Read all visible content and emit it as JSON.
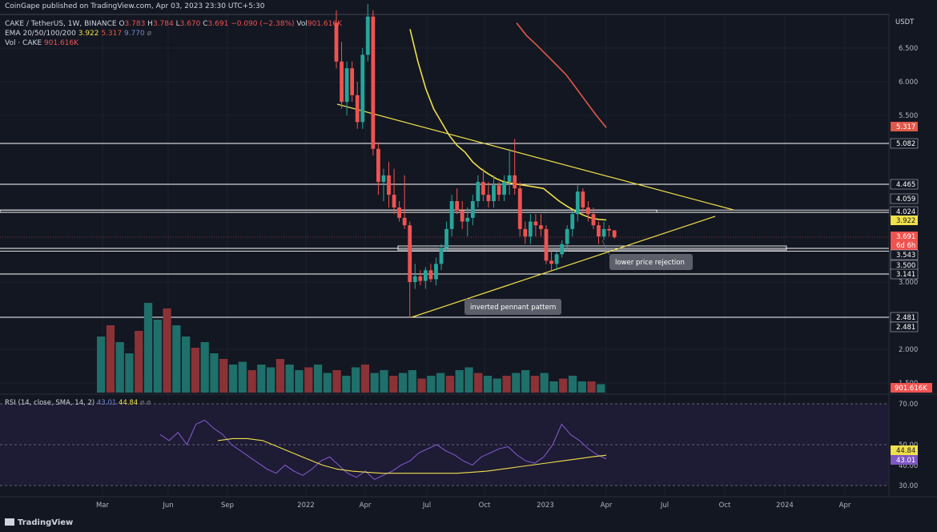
{
  "header": {
    "published": "CoinGape published on TradingView.com, Apr 03, 2023 23:30 UTC+5:30"
  },
  "legend": {
    "symbol": "CAKE / TetherUS, 1W, BINANCE",
    "o_label": "O",
    "o_value": "3.783",
    "h_label": "H",
    "h_value": "3.784",
    "l_label": "L",
    "l_value": "3.670",
    "c_label": "C",
    "c_value": "3.691",
    "change": "−0.090 (−2.38%)",
    "vol_label": "Vol",
    "vol_value": "901.616K",
    "ema_label": "EMA 20/50/100/200",
    "ema20": "3.922",
    "ema50": "5.317",
    "ema100": "9.770",
    "ema200": "ø",
    "vol_line_label": "Vol · CAKE",
    "vol_line_value": "901.616K"
  },
  "rsi_legend": {
    "label": "RSI (14, close, SMA, 14, 2)",
    "rsi": "43.01",
    "sma": "44.84",
    "extra": "ø ø"
  },
  "price_axis": {
    "currency": "USDT",
    "ticks": [
      "6.500",
      "6.000",
      "5.500",
      "3.000",
      "2.000",
      "1.500"
    ],
    "levels": [
      {
        "value": "5.317",
        "color": "#e0584a"
      },
      {
        "value": "5.082",
        "color": "#ffffff"
      },
      {
        "value": "4.465",
        "color": "#ffffff"
      },
      {
        "value": "4.059",
        "color": "#ffffff"
      },
      {
        "value": "4.024",
        "color": "#ffffff"
      },
      {
        "value": "3.922",
        "color": "#f0e04a"
      },
      {
        "value": "3.691",
        "color": "#ef5350"
      },
      {
        "value": "6d 6h",
        "color": "#ef5350"
      },
      {
        "value": "3.543",
        "color": "#ffffff"
      },
      {
        "value": "3.500",
        "color": "#ffffff"
      },
      {
        "value": "3.141",
        "color": "#ffffff"
      },
      {
        "value": "2.481",
        "color": "#ffffff"
      },
      {
        "value": "2.481",
        "color": "#ffffff"
      }
    ],
    "volume_label": "901.616K"
  },
  "rsi_axis": {
    "ticks": [
      "70.00",
      "40.00",
      "30.00"
    ],
    "sma_label": "44.84",
    "rsi_label": "43.01",
    "partial_tick": "50.00"
  },
  "time_axis": [
    "Mar",
    "Jun",
    "Sep",
    "2022",
    "Apr",
    "Jul",
    "Oct",
    "2023",
    "Apr",
    "Jul",
    "Oct",
    "2024",
    "Apr"
  ],
  "annotations": {
    "lower_rejection": "lower price rejection",
    "pennant": "inverted pennant pattern"
  },
  "footer": {
    "brand": "TradingView"
  },
  "colors": {
    "background": "#131722",
    "up": "#26a69a",
    "down": "#ef5350",
    "ema20": "#f0e04a",
    "ema50": "#e0584a",
    "rsi": "#7e57c2",
    "rsi_sma": "#f0e04a",
    "trendline": "#f0e04a",
    "level_line": "#ffffff"
  },
  "chart_data": {
    "type": "candlestick",
    "x_labels": [
      "Mar",
      "Jun",
      "Sep",
      "2022",
      "Apr",
      "Jul",
      "Oct",
      "2023",
      "Apr",
      "Jul",
      "Oct",
      "2024",
      "Apr"
    ],
    "y_ticks": [
      6.5,
      6.0,
      5.5,
      3.0,
      2.0,
      1.5
    ],
    "horizontal_levels": [
      5.082,
      4.465,
      4.059,
      4.024,
      3.543,
      3.5,
      3.141,
      2.481
    ],
    "candles": [
      {
        "o": 6.9,
        "h": 7.1,
        "l": 6.2,
        "c": 6.3
      },
      {
        "o": 6.3,
        "h": 6.6,
        "l": 5.6,
        "c": 5.7
      },
      {
        "o": 5.7,
        "h": 6.3,
        "l": 5.5,
        "c": 6.2
      },
      {
        "o": 6.2,
        "h": 6.3,
        "l": 5.7,
        "c": 5.8
      },
      {
        "o": 5.8,
        "h": 6.0,
        "l": 5.3,
        "c": 5.4
      },
      {
        "o": 5.4,
        "h": 6.5,
        "l": 5.3,
        "c": 6.4
      },
      {
        "o": 6.4,
        "h": 7.2,
        "l": 6.3,
        "c": 7.0
      },
      {
        "o": 7.0,
        "h": 7.1,
        "l": 4.9,
        "c": 5.0
      },
      {
        "o": 5.0,
        "h": 5.1,
        "l": 4.3,
        "c": 4.5
      },
      {
        "o": 4.5,
        "h": 4.7,
        "l": 4.2,
        "c": 4.6
      },
      {
        "o": 4.6,
        "h": 4.8,
        "l": 4.1,
        "c": 4.3
      },
      {
        "o": 4.3,
        "h": 4.7,
        "l": 4.0,
        "c": 4.1
      },
      {
        "o": 4.1,
        "h": 4.2,
        "l": 3.9,
        "c": 3.95
      },
      {
        "o": 3.95,
        "h": 4.6,
        "l": 3.8,
        "c": 3.85
      },
      {
        "o": 3.85,
        "h": 3.9,
        "l": 2.48,
        "c": 3.0
      },
      {
        "o": 3.0,
        "h": 3.3,
        "l": 2.9,
        "c": 3.1
      },
      {
        "o": 3.1,
        "h": 3.2,
        "l": 2.95,
        "c": 3.02
      },
      {
        "o": 3.02,
        "h": 3.25,
        "l": 2.9,
        "c": 3.2
      },
      {
        "o": 3.2,
        "h": 3.3,
        "l": 3.0,
        "c": 3.05
      },
      {
        "o": 3.05,
        "h": 3.4,
        "l": 2.95,
        "c": 3.3
      },
      {
        "o": 3.3,
        "h": 3.6,
        "l": 3.2,
        "c": 3.55
      },
      {
        "o": 3.55,
        "h": 3.9,
        "l": 3.5,
        "c": 3.8
      },
      {
        "o": 3.8,
        "h": 4.3,
        "l": 3.7,
        "c": 4.2
      },
      {
        "o": 4.2,
        "h": 4.4,
        "l": 4.0,
        "c": 4.05
      },
      {
        "o": 4.05,
        "h": 4.2,
        "l": 3.8,
        "c": 3.9
      },
      {
        "o": 3.9,
        "h": 4.1,
        "l": 3.7,
        "c": 3.95
      },
      {
        "o": 3.95,
        "h": 4.3,
        "l": 3.85,
        "c": 4.2
      },
      {
        "o": 4.2,
        "h": 4.6,
        "l": 4.1,
        "c": 4.5
      },
      {
        "o": 4.5,
        "h": 4.7,
        "l": 4.2,
        "c": 4.3
      },
      {
        "o": 4.3,
        "h": 4.5,
        "l": 4.1,
        "c": 4.2
      },
      {
        "o": 4.2,
        "h": 4.6,
        "l": 4.1,
        "c": 4.45
      },
      {
        "o": 4.45,
        "h": 4.5,
        "l": 4.2,
        "c": 4.3
      },
      {
        "o": 4.3,
        "h": 4.6,
        "l": 4.2,
        "c": 4.5
      },
      {
        "o": 4.5,
        "h": 5.0,
        "l": 4.3,
        "c": 4.6
      },
      {
        "o": 4.6,
        "h": 5.15,
        "l": 4.3,
        "c": 4.4
      },
      {
        "o": 4.4,
        "h": 4.5,
        "l": 3.7,
        "c": 3.8
      },
      {
        "o": 3.8,
        "h": 3.9,
        "l": 3.6,
        "c": 3.7
      },
      {
        "o": 3.7,
        "h": 4.0,
        "l": 3.6,
        "c": 3.9
      },
      {
        "o": 3.9,
        "h": 4.0,
        "l": 3.7,
        "c": 3.85
      },
      {
        "o": 3.85,
        "h": 4.0,
        "l": 3.7,
        "c": 3.8
      },
      {
        "o": 3.8,
        "h": 3.85,
        "l": 3.3,
        "c": 3.35
      },
      {
        "o": 3.35,
        "h": 3.5,
        "l": 3.2,
        "c": 3.3
      },
      {
        "o": 3.3,
        "h": 3.5,
        "l": 3.2,
        "c": 3.45
      },
      {
        "o": 3.45,
        "h": 3.65,
        "l": 3.4,
        "c": 3.6
      },
      {
        "o": 3.6,
        "h": 3.85,
        "l": 3.5,
        "c": 3.8
      },
      {
        "o": 3.8,
        "h": 4.05,
        "l": 3.7,
        "c": 4.0
      },
      {
        "o": 4.0,
        "h": 4.45,
        "l": 3.9,
        "c": 4.35
      },
      {
        "o": 4.35,
        "h": 4.4,
        "l": 4.0,
        "c": 4.1
      },
      {
        "o": 4.1,
        "h": 4.2,
        "l": 3.9,
        "c": 4.0
      },
      {
        "o": 4.0,
        "h": 4.1,
        "l": 3.8,
        "c": 3.85
      },
      {
        "o": 3.85,
        "h": 3.9,
        "l": 3.6,
        "c": 3.7
      },
      {
        "o": 3.7,
        "h": 3.9,
        "l": 3.65,
        "c": 3.8
      },
      {
        "o": 3.8,
        "h": 3.85,
        "l": 3.7,
        "c": 3.78
      },
      {
        "o": 3.783,
        "h": 3.784,
        "l": 3.67,
        "c": 3.691
      }
    ],
    "ema20": [
      6.8,
      6.3,
      5.9,
      5.6,
      5.4,
      5.2,
      5.05,
      4.95,
      4.8,
      4.7,
      4.62,
      4.55,
      4.5,
      4.48,
      4.46,
      4.44,
      4.42,
      4.4,
      4.3,
      4.2,
      4.12,
      4.05,
      3.99,
      3.95,
      3.93,
      3.922
    ],
    "ema50": [
      6.9,
      6.7,
      6.55,
      6.4,
      6.25,
      6.1,
      5.9,
      5.7,
      5.5,
      5.317
    ],
    "rsi": [
      55,
      52,
      56,
      50,
      60,
      62,
      58,
      55,
      50,
      47,
      44,
      41,
      38,
      36,
      40,
      37,
      35,
      38,
      42,
      44,
      40,
      36,
      34,
      37,
      33,
      35,
      37,
      40,
      42,
      46,
      48,
      50,
      47,
      45,
      42,
      40,
      44,
      46,
      48,
      49,
      45,
      42,
      41,
      44,
      50,
      60,
      55,
      52,
      48,
      45,
      43.01
    ],
    "rsi_sma": [
      52,
      53,
      53,
      52,
      49,
      46,
      43,
      40,
      38,
      37,
      36.5,
      36,
      36,
      36,
      36,
      36,
      36,
      36.5,
      37,
      38,
      39,
      40,
      41,
      42,
      43,
      44,
      44.84
    ],
    "volume": [
      1.0,
      1.2,
      0.9,
      0.7,
      1.1,
      1.6,
      1.3,
      1.5,
      1.2,
      1.0,
      0.8,
      0.9,
      0.7,
      0.6,
      0.5,
      0.55,
      0.4,
      0.5,
      0.45,
      0.6,
      0.5,
      0.4,
      0.45,
      0.5,
      0.35,
      0.4,
      0.3,
      0.45,
      0.5,
      0.35,
      0.4,
      0.3,
      0.35,
      0.4,
      0.25,
      0.3,
      0.35,
      0.3,
      0.4,
      0.45,
      0.35,
      0.3,
      0.25,
      0.3,
      0.35,
      0.4,
      0.3,
      0.35,
      0.2,
      0.25,
      0.3,
      0.2,
      0.2,
      0.15
    ],
    "annotations": [
      "lower price rejection",
      "inverted pennant pattern"
    ]
  }
}
